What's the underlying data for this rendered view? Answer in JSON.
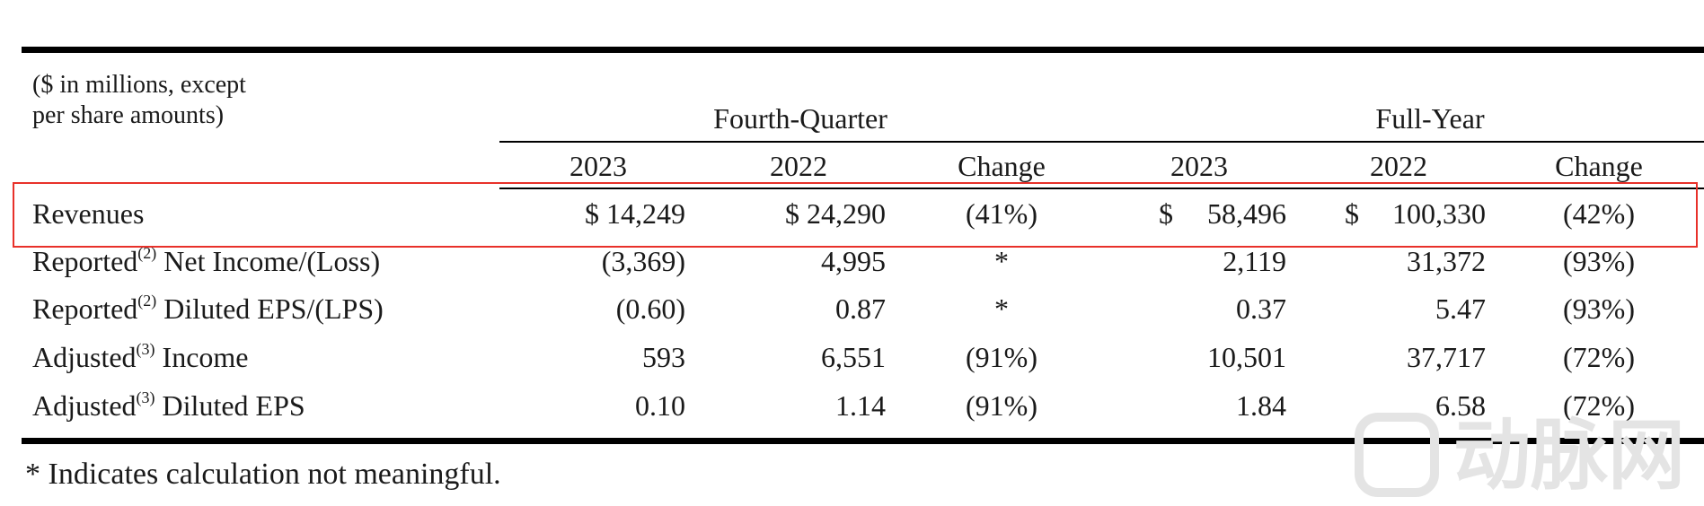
{
  "table": {
    "units_note_line1": "($ in millions, except",
    "units_note_line2": "per share amounts)",
    "group_headers": [
      "Fourth-Quarter",
      "Full-Year"
    ],
    "column_headers": [
      "2023",
      "2022",
      "Change",
      "2023",
      "2022",
      "Change"
    ],
    "rows": [
      {
        "label": "Revenues",
        "sup": "",
        "label_rest": "",
        "values": [
          "$ 14,249",
          "$ 24,290",
          "(41%)",
          "$",
          "58,496",
          "$",
          "100,330",
          "(42%)"
        ]
      },
      {
        "label": "Reported",
        "sup": "(2)",
        "label_rest": " Net Income/(Loss)",
        "values": [
          "(3,369)",
          "4,995",
          "*",
          "",
          "2,119",
          "",
          "31,372",
          "(93%)"
        ]
      },
      {
        "label": "Reported",
        "sup": "(2)",
        "label_rest": " Diluted EPS/(LPS)",
        "values": [
          "(0.60)",
          "0.87",
          "*",
          "",
          "0.37",
          "",
          "5.47",
          "(93%)"
        ]
      },
      {
        "label": "Adjusted",
        "sup": "(3)",
        "label_rest": " Income",
        "values": [
          "593",
          "6,551",
          "(91%)",
          "",
          "10,501",
          "",
          "37,717",
          "(72%)"
        ]
      },
      {
        "label": "Adjusted",
        "sup": "(3)",
        "label_rest": " Diluted EPS",
        "values": [
          "0.10",
          "1.14",
          "(91%)",
          "",
          "1.84",
          "",
          "6.58",
          "(72%)"
        ]
      }
    ],
    "footnote": "* Indicates calculation not meaningful."
  },
  "watermark": {
    "text": "动脉网"
  },
  "colors": {
    "highlight": "#e8312a",
    "rule": "#000000"
  }
}
